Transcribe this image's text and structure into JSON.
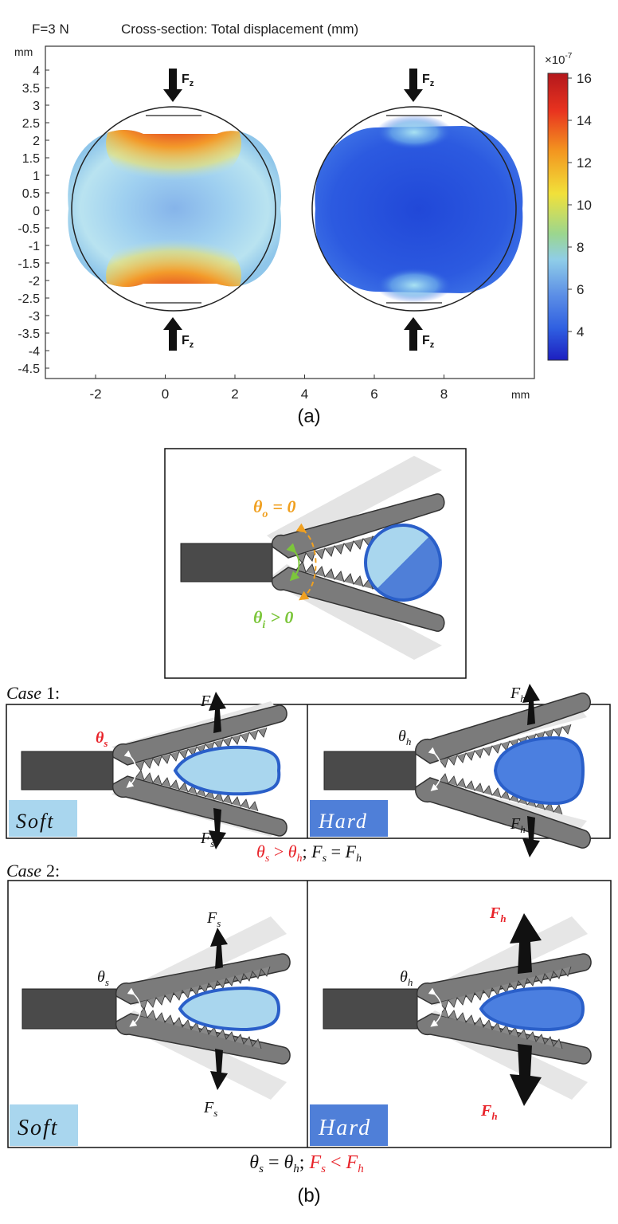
{
  "fig_a": {
    "force_label": "F=3 N",
    "title": "Cross-section: Total displacement (mm)",
    "axis_unit": "mm",
    "x_ticks": [
      "-2",
      "0",
      "2",
      "4",
      "6",
      "8"
    ],
    "y_ticks": [
      "4",
      "3.5",
      "3",
      "2.5",
      "2",
      "1.5",
      "1",
      "0.5",
      "0",
      "-0.5",
      "-1",
      "-1.5",
      "-2",
      "-2.5",
      "-3",
      "-3.5",
      "-4",
      "-4.5"
    ],
    "colorbar": {
      "multiplier": "×10",
      "exponent": "-7",
      "ticks": [
        "16",
        "14",
        "12",
        "10",
        "8",
        "6",
        "4"
      ],
      "colors": [
        "#b3171c",
        "#e8331f",
        "#f3951f",
        "#f1e13a",
        "#9bd68f",
        "#8fcde8",
        "#5d90e6",
        "#2f5fe1",
        "#1d1fc0"
      ]
    },
    "force_arrow": "F",
    "force_sub": "z",
    "caption": "(a)"
  },
  "fig_b": {
    "top_panel": {
      "theta_o_sym": "θ",
      "theta_o_sub": "o",
      "theta_o_rel": "= 0",
      "theta_i_sym": "θ",
      "theta_i_sub": "i",
      "theta_i_rel": "> 0"
    },
    "case1": {
      "label": "Case",
      "num": "1:",
      "soft": {
        "badge": "Soft",
        "theta_sym": "θ",
        "theta_sub": "s",
        "force_sym": "F",
        "force_sub": "s"
      },
      "hard": {
        "badge": "Hard",
        "theta_sym": "θ",
        "theta_sub": "h",
        "force_sym": "F",
        "force_sub": "h"
      },
      "relation": {
        "a_sym": "θ",
        "a_sub": "s",
        "gt": " > ",
        "b_sym": "θ",
        "b_sub": "h",
        "sep": "; ",
        "c_sym": "F",
        "c_sub": "s",
        "eq": " = ",
        "d_sym": "F",
        "d_sub": "h"
      }
    },
    "case2": {
      "label": "Case",
      "num": "2:",
      "soft": {
        "badge": "Soft",
        "theta_sym": "θ",
        "theta_sub": "s",
        "force_sym": "F",
        "force_sub": "s"
      },
      "hard": {
        "badge": "Hard",
        "theta_sym": "θ",
        "theta_sub": "h",
        "force_sym": "F",
        "force_sub": "h"
      },
      "relation": {
        "a_sym": "θ",
        "a_sub": "s",
        "eq": " =  ",
        "b_sym": "θ",
        "b_sub": "h",
        "sep": "; ",
        "c_sym": "F",
        "c_sub": "s",
        "lt": " < ",
        "d_sym": "F",
        "d_sub": "h"
      }
    },
    "caption": "(b)",
    "colors": {
      "soft_badge": "#a9d6ee",
      "hard_badge": "#4f7fd8",
      "jaw": "#7b7b7b",
      "handle": "#4a4a4a",
      "soft_fill": "#a9d6ee",
      "hard_fill": "#4b7fe0",
      "outline_blue": "#2a5fc9",
      "red_text": "#e8232a",
      "orange_text": "#f0a020",
      "green_text": "#7cc63b"
    }
  }
}
